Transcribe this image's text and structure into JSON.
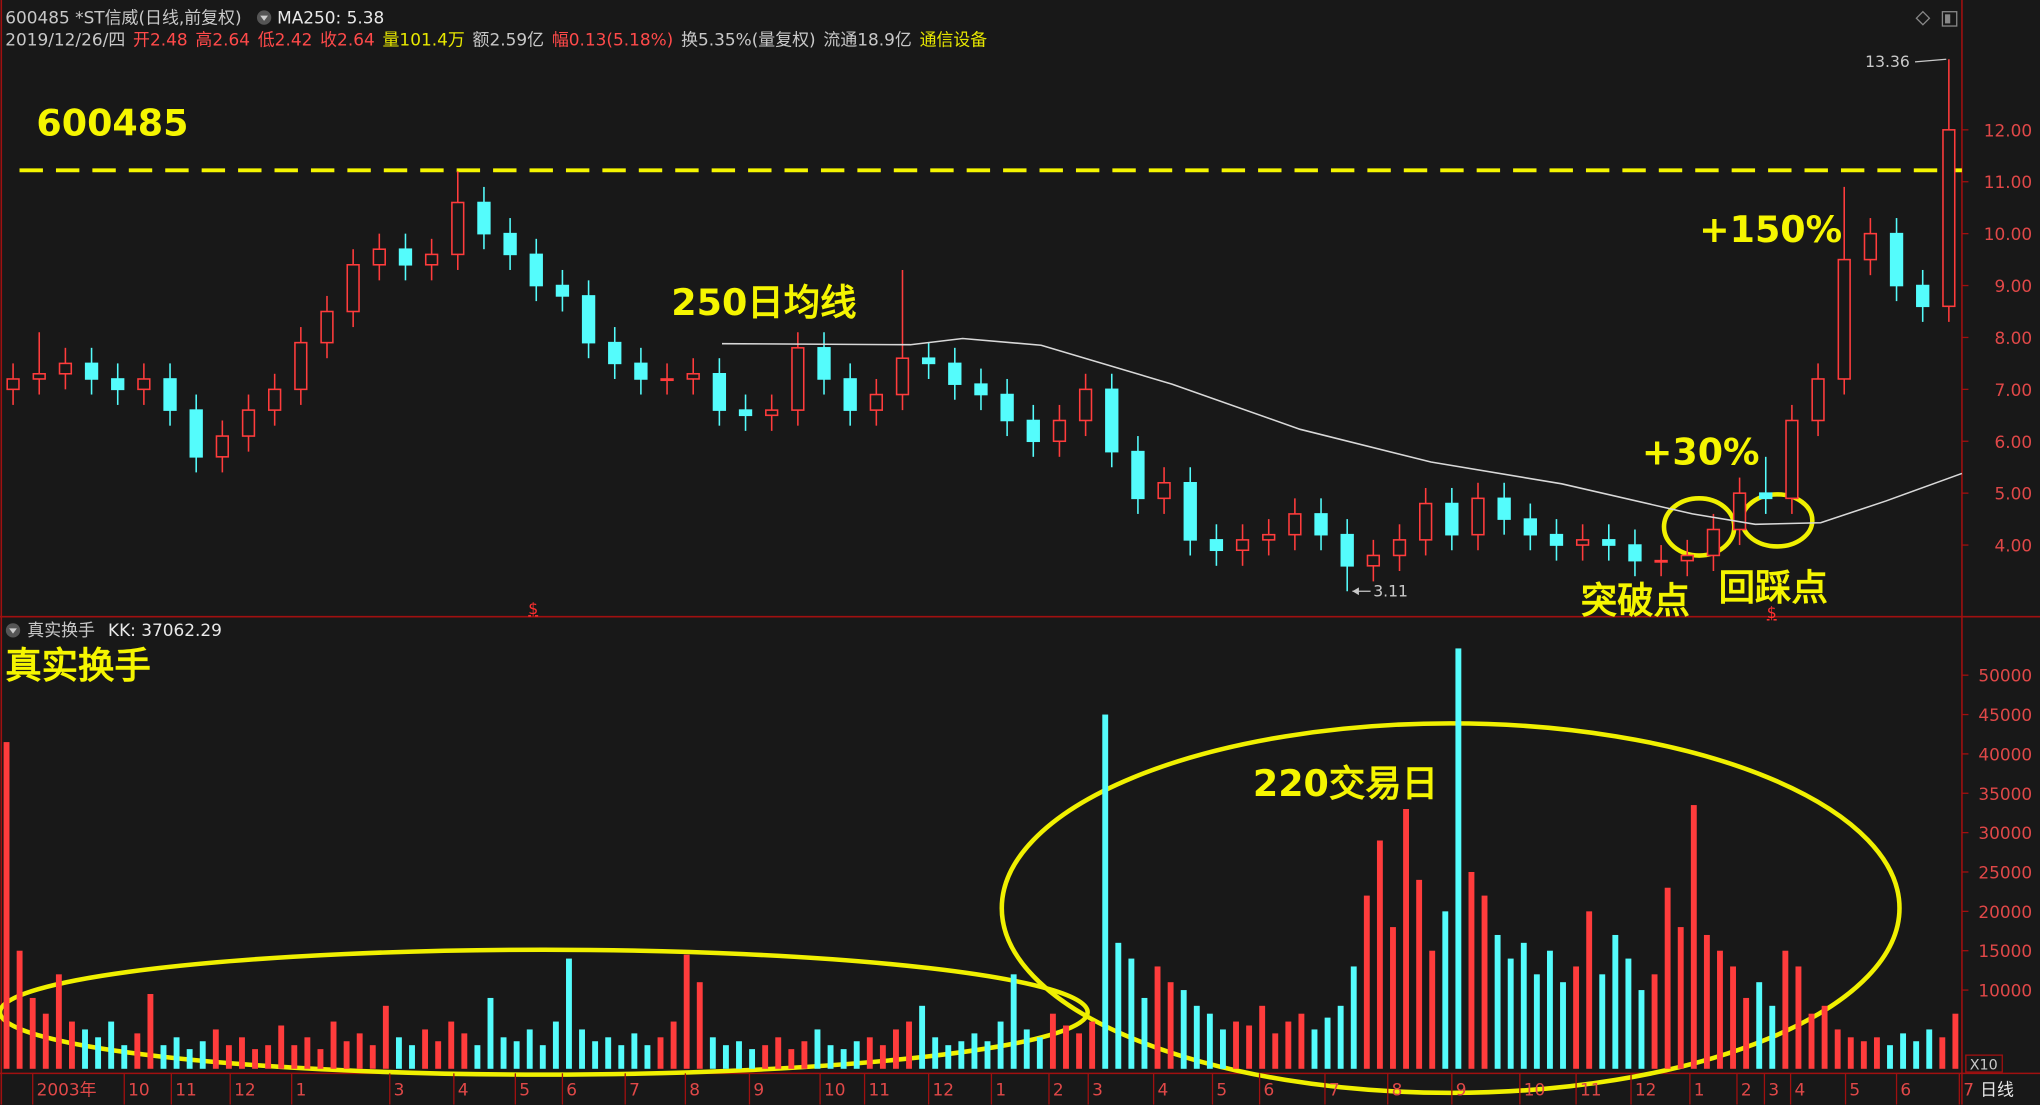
{
  "chart_data": [
    {
      "type": "candlestick",
      "title": "600485 *ST信威(日线,前复权)",
      "indicator": "MA250: 5.38",
      "quote": [
        {
          "text": "2019/12/26/四",
          "color": "#c8c8c8"
        },
        {
          "text": "开2.48",
          "color": "#ff4a4a"
        },
        {
          "text": "高2.64",
          "color": "#ff4a4a"
        },
        {
          "text": "低2.42",
          "color": "#ff4a4a"
        },
        {
          "text": "收2.64",
          "color": "#ff4a4a"
        },
        {
          "text": "量101.4万",
          "color": "#e8e800"
        },
        {
          "text": "额2.59亿",
          "color": "#c8c8c8"
        },
        {
          "text": "幅0.13(5.18%)",
          "color": "#ff4a4a"
        },
        {
          "text": "换5.35%(量复权)",
          "color": "#c8c8c8"
        },
        {
          "text": "流通18.9亿",
          "color": "#c8c8c8"
        },
        {
          "text": "通信设备",
          "color": "#e8e800"
        }
      ],
      "open": [
        7.0,
        7.2,
        7.3,
        7.5,
        7.2,
        7.0,
        7.2,
        6.6,
        5.7,
        6.1,
        6.6,
        7.0,
        7.9,
        8.5,
        9.4,
        9.7,
        9.4,
        9.6,
        10.6,
        10.0,
        9.6,
        9.0,
        8.8,
        7.9,
        7.5,
        7.2,
        7.2,
        7.3,
        6.6,
        6.5,
        6.6,
        7.8,
        7.2,
        6.6,
        6.9,
        7.6,
        7.5,
        7.1,
        6.9,
        6.4,
        6.0,
        6.4,
        7.0,
        5.8,
        4.9,
        5.2,
        4.1,
        3.9,
        4.1,
        4.2,
        4.6,
        4.2,
        3.6,
        3.8,
        4.1,
        4.8,
        4.2,
        4.9,
        4.5,
        4.2,
        4.0,
        4.1,
        4.0,
        3.7,
        3.7,
        3.8,
        4.3,
        5.0,
        4.9,
        6.4,
        7.2,
        9.5,
        10.0,
        9.0,
        8.6
      ],
      "high": [
        7.5,
        8.1,
        7.8,
        7.8,
        7.5,
        7.5,
        7.5,
        6.9,
        6.4,
        6.9,
        7.3,
        8.2,
        8.8,
        9.7,
        10.0,
        10.0,
        9.9,
        11.2,
        10.9,
        10.3,
        9.9,
        9.3,
        9.1,
        8.2,
        7.8,
        7.5,
        7.6,
        7.6,
        6.9,
        6.9,
        8.1,
        8.1,
        7.5,
        7.2,
        9.3,
        7.9,
        7.8,
        7.4,
        7.2,
        6.7,
        6.7,
        7.3,
        7.3,
        6.1,
        5.5,
        5.5,
        4.4,
        4.4,
        4.5,
        4.9,
        4.9,
        4.5,
        4.1,
        4.4,
        5.1,
        5.1,
        5.2,
        5.2,
        4.8,
        4.5,
        4.4,
        4.4,
        4.3,
        4.0,
        4.1,
        4.6,
        5.3,
        5.7,
        6.7,
        7.5,
        10.9,
        10.3,
        10.3,
        9.3,
        13.36
      ],
      "low": [
        6.7,
        6.9,
        7.0,
        6.9,
        6.7,
        6.7,
        6.3,
        5.4,
        5.4,
        5.8,
        6.3,
        6.7,
        7.6,
        8.2,
        9.1,
        9.1,
        9.1,
        9.3,
        9.7,
        9.3,
        8.7,
        8.5,
        7.6,
        7.2,
        6.9,
        6.9,
        6.9,
        6.3,
        6.2,
        6.2,
        6.3,
        6.9,
        6.3,
        6.3,
        6.6,
        7.2,
        6.8,
        6.6,
        6.1,
        5.7,
        5.7,
        6.1,
        5.5,
        4.6,
        4.6,
        3.8,
        3.6,
        3.6,
        3.8,
        3.9,
        3.9,
        3.11,
        3.3,
        3.5,
        3.8,
        3.9,
        3.9,
        4.2,
        3.9,
        3.7,
        3.7,
        3.7,
        3.4,
        3.4,
        3.4,
        3.5,
        4.0,
        4.6,
        4.6,
        6.1,
        6.9,
        9.2,
        8.7,
        8.3,
        8.3
      ],
      "close": [
        7.2,
        7.3,
        7.5,
        7.2,
        7.0,
        7.2,
        6.6,
        5.7,
        6.1,
        6.6,
        7.0,
        7.9,
        8.5,
        9.4,
        9.7,
        9.4,
        9.6,
        10.6,
        10.0,
        9.6,
        9.0,
        8.8,
        7.9,
        7.5,
        7.2,
        7.2,
        7.3,
        6.6,
        6.5,
        6.6,
        7.8,
        7.2,
        6.6,
        6.9,
        7.6,
        7.5,
        7.1,
        6.9,
        6.4,
        6.0,
        6.4,
        7.0,
        5.8,
        4.9,
        5.2,
        4.1,
        3.9,
        4.1,
        4.2,
        4.6,
        4.2,
        3.6,
        3.8,
        4.1,
        4.8,
        4.2,
        4.9,
        4.5,
        4.2,
        4.0,
        4.1,
        4.0,
        3.7,
        3.7,
        3.8,
        4.3,
        5.0,
        4.9,
        6.4,
        7.2,
        9.5,
        10.0,
        9.0,
        8.6,
        12.0
      ],
      "up_color": "#ff3c3c",
      "down_color": "#54fcfc",
      "ma": {
        "x": [
          27.1,
          34.3,
          36.3,
          39.3,
          44.3,
          49.2,
          54.2,
          59.2,
          64.2,
          66.6,
          69.1,
          71.6,
          74.5
        ],
        "values": [
          7.88,
          7.86,
          7.98,
          7.85,
          7.1,
          6.23,
          5.6,
          5.18,
          4.6,
          4.4,
          4.43,
          4.85,
          5.38
        ],
        "color": "#d8d8d8"
      },
      "high_label": "13.36",
      "low_label": "3.11",
      "event_marks": [
        "$",
        "$"
      ],
      "resistance_level": 11.22,
      "annotations": [
        "600485",
        "250日均线",
        "+150%",
        "+30%",
        "突破点",
        "回踩点"
      ],
      "xlim": [
        -0.5,
        74.5
      ],
      "ylim": [
        2.62,
        13.95
      ],
      "yticks": [
        {
          "value": 4,
          "label": "4.00"
        },
        {
          "value": 5,
          "label": "5.00"
        },
        {
          "value": 6,
          "label": "6.00"
        },
        {
          "value": 7,
          "label": "7.00"
        },
        {
          "value": 8,
          "label": "8.00"
        },
        {
          "value": 9,
          "label": "9.00"
        },
        {
          "value": 10,
          "label": "10.00"
        },
        {
          "value": 11,
          "label": "11.00"
        },
        {
          "value": 12,
          "label": "12.00"
        }
      ]
    },
    {
      "type": "bar",
      "title": "真实换手",
      "indicator": "KK: 37062.29",
      "annotations": [
        "真实换手",
        "220交易日"
      ],
      "period": "日线",
      "zoom": "X10",
      "values": [
        41500,
        15000,
        9000,
        7000,
        12000,
        6000,
        5000,
        4000,
        6000,
        3000,
        4500,
        9500,
        3000,
        4000,
        2500,
        3500,
        5000,
        3000,
        4000,
        2500,
        3000,
        5500,
        3000,
        4000,
        2500,
        6000,
        3500,
        4500,
        3000,
        8000,
        4000,
        3000,
        5000,
        3500,
        6000,
        4500,
        3000,
        9000,
        4000,
        3500,
        5000,
        3000,
        6000,
        14000,
        5000,
        3500,
        4000,
        3000,
        4500,
        3000,
        4000,
        6000,
        14500,
        11000,
        4000,
        3000,
        3500,
        2500,
        3000,
        4000,
        2500,
        3500,
        5000,
        3000,
        2500,
        3500,
        4000,
        3000,
        5000,
        6000,
        8000,
        4000,
        3000,
        3500,
        4500,
        3500,
        6000,
        12000,
        5000,
        4000,
        7000,
        5500,
        4500,
        6000,
        45000,
        16000,
        14000,
        9000,
        13000,
        11000,
        10000,
        8000,
        7000,
        5000,
        6000,
        5500,
        8000,
        4500,
        6000,
        7000,
        5000,
        6500,
        8000,
        13000,
        22000,
        29000,
        18000,
        33000,
        24000,
        15000,
        20000,
        53400,
        25000,
        22000,
        17000,
        14000,
        16000,
        12000,
        15000,
        11000,
        13000,
        20000,
        12000,
        17000,
        14000,
        10000,
        12000,
        23000,
        18000,
        33500,
        17000,
        15000,
        13000,
        9000,
        11000,
        8000,
        15000,
        13000,
        7000,
        8000,
        5000,
        4000,
        3500,
        4000,
        3000,
        4500,
        3500,
        5000,
        4000,
        7000
      ],
      "xlim": [
        -0.5,
        149.5
      ],
      "ylim": [
        0,
        57100
      ],
      "yticks": [
        10000,
        15000,
        20000,
        25000,
        30000,
        35000,
        40000,
        45000,
        50000
      ],
      "xticks": [
        {
          "value": 2.0,
          "label": "2003年"
        },
        {
          "value": 9.0,
          "label": "10"
        },
        {
          "value": 12.6,
          "label": "11"
        },
        {
          "value": 17.1,
          "label": "12"
        },
        {
          "value": 21.8,
          "label": "1"
        },
        {
          "value": 29.3,
          "label": "3"
        },
        {
          "value": 34.2,
          "label": "4"
        },
        {
          "value": 38.9,
          "label": "5"
        },
        {
          "value": 42.5,
          "label": "6"
        },
        {
          "value": 47.3,
          "label": "7"
        },
        {
          "value": 51.9,
          "label": "8"
        },
        {
          "value": 56.8,
          "label": "9"
        },
        {
          "value": 62.2,
          "label": "10"
        },
        {
          "value": 65.6,
          "label": "11"
        },
        {
          "value": 70.5,
          "label": "12"
        },
        {
          "value": 75.3,
          "label": "1"
        },
        {
          "value": 79.7,
          "label": "2"
        },
        {
          "value": 82.7,
          "label": "3"
        },
        {
          "value": 87.7,
          "label": "4"
        },
        {
          "value": 92.2,
          "label": "5"
        },
        {
          "value": 95.8,
          "label": "6"
        },
        {
          "value": 100.8,
          "label": "7"
        },
        {
          "value": 105.6,
          "label": "8"
        },
        {
          "value": 110.5,
          "label": "9"
        },
        {
          "value": 115.7,
          "label": "10"
        },
        {
          "value": 120.0,
          "label": "11"
        },
        {
          "value": 124.2,
          "label": "12"
        },
        {
          "value": 128.7,
          "label": "1"
        },
        {
          "value": 132.3,
          "label": "2"
        },
        {
          "value": 134.4,
          "label": "3"
        },
        {
          "value": 136.4,
          "label": "4"
        },
        {
          "value": 140.6,
          "label": "5"
        },
        {
          "value": 144.5,
          "label": "6"
        },
        {
          "value": 149.3,
          "label": "7"
        }
      ]
    }
  ]
}
